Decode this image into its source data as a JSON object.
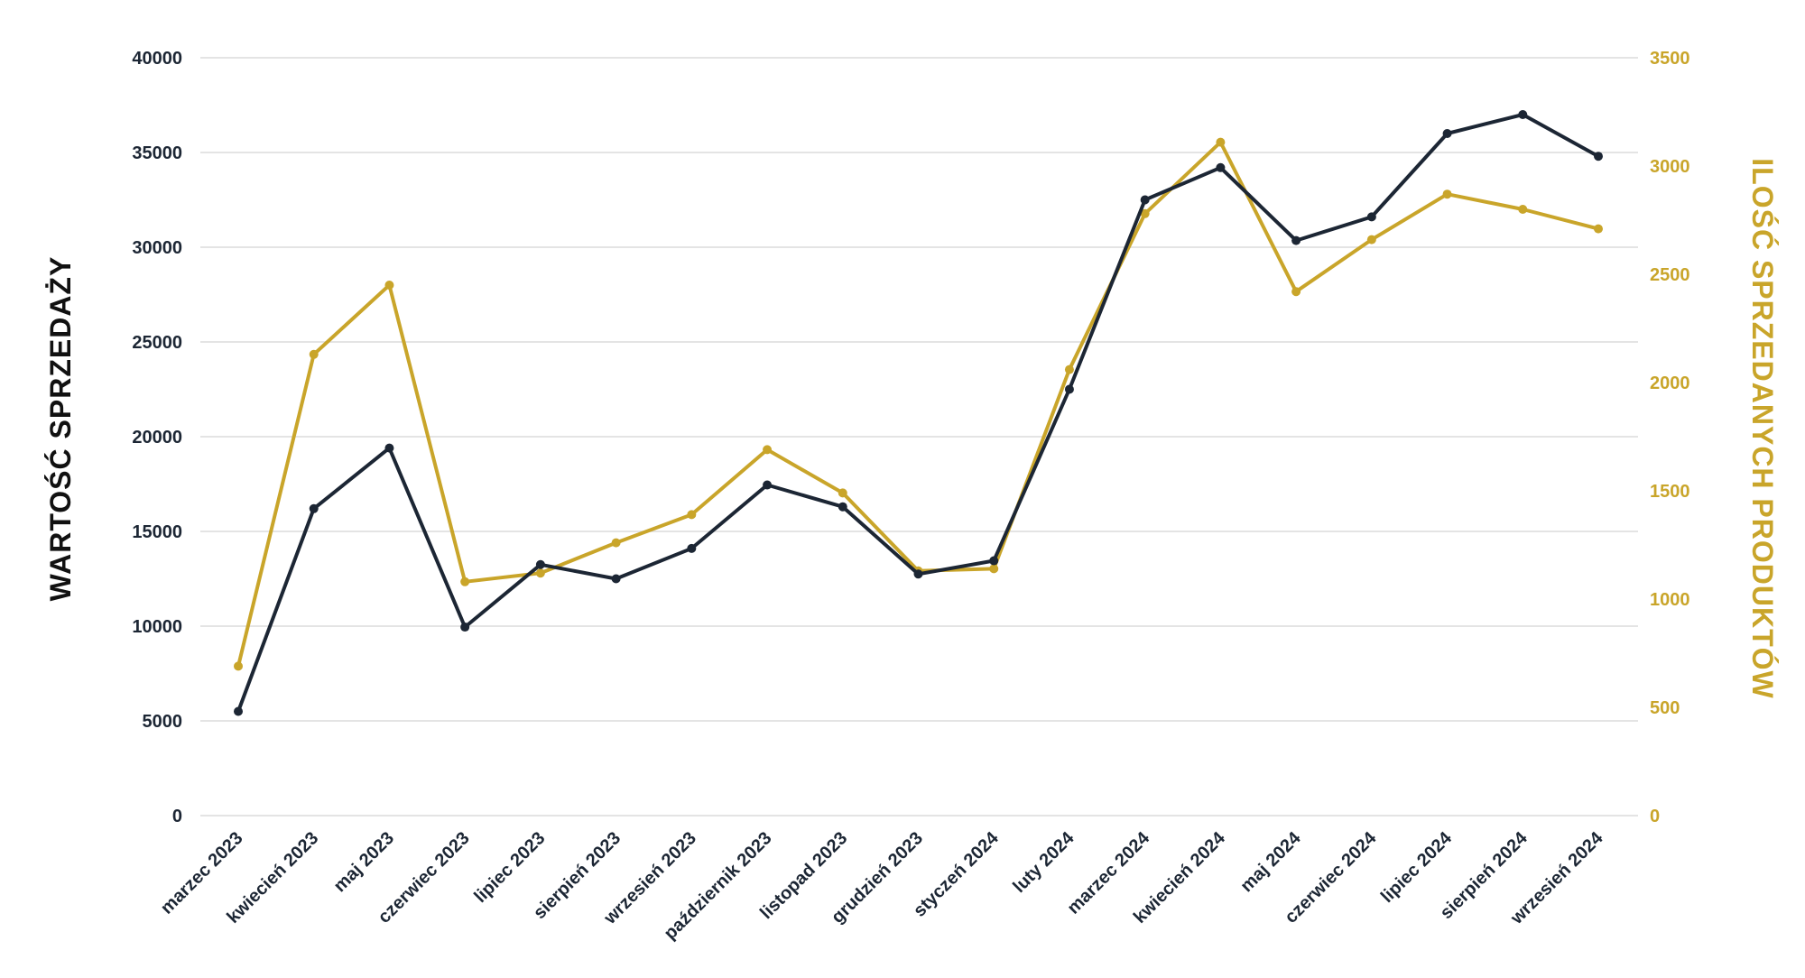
{
  "colors": {
    "series_value": "#1c2634",
    "series_quantity": "#c9a52a",
    "grid": "#dcdcdc",
    "background": "#ffffff"
  },
  "chart_data": {
    "type": "line",
    "categories": [
      "marzec 2023",
      "kwiecień 2023",
      "maj 2023",
      "czerwiec 2023",
      "lipiec 2023",
      "sierpień 2023",
      "wrzesień 2023",
      "październik 2023",
      "listopad 2023",
      "grudzień 2023",
      "styczeń 2024",
      "luty 2024",
      "marzec 2024",
      "kwiecień 2024",
      "maj 2024",
      "czerwiec 2024",
      "lipiec 2024",
      "sierpień 2024",
      "wrzesień 2024"
    ],
    "series": [
      {
        "axis": "left",
        "color": "#1c2634",
        "values": [
          5500,
          16200,
          19400,
          9950,
          13250,
          12500,
          14100,
          17450,
          16300,
          12750,
          13450,
          22500,
          32500,
          34200,
          30350,
          31600,
          36000,
          37000,
          34800
        ]
      },
      {
        "axis": "right",
        "color": "#c9a52a",
        "values": [
          690,
          2130,
          2450,
          1080,
          1120,
          1260,
          1390,
          1690,
          1490,
          1130,
          1140,
          2060,
          2780,
          3110,
          2420,
          2660,
          2870,
          2800,
          2710
        ]
      }
    ],
    "ylabel": "WARTOŚĆ SPRZEDAŻY",
    "y2label": "ILOŚĆ SPRZEDANYCH PRODUKTÓW",
    "ylim": [
      0,
      40000
    ],
    "y2lim": [
      0,
      3500
    ],
    "yticks": [
      "0",
      "5000",
      "10000",
      "15000",
      "20000",
      "25000",
      "30000",
      "35000",
      "40000"
    ],
    "y2ticks": [
      "0",
      "500",
      "1000",
      "1500",
      "2000",
      "2500",
      "3000",
      "3500"
    ],
    "grid": true,
    "legend": "none"
  }
}
